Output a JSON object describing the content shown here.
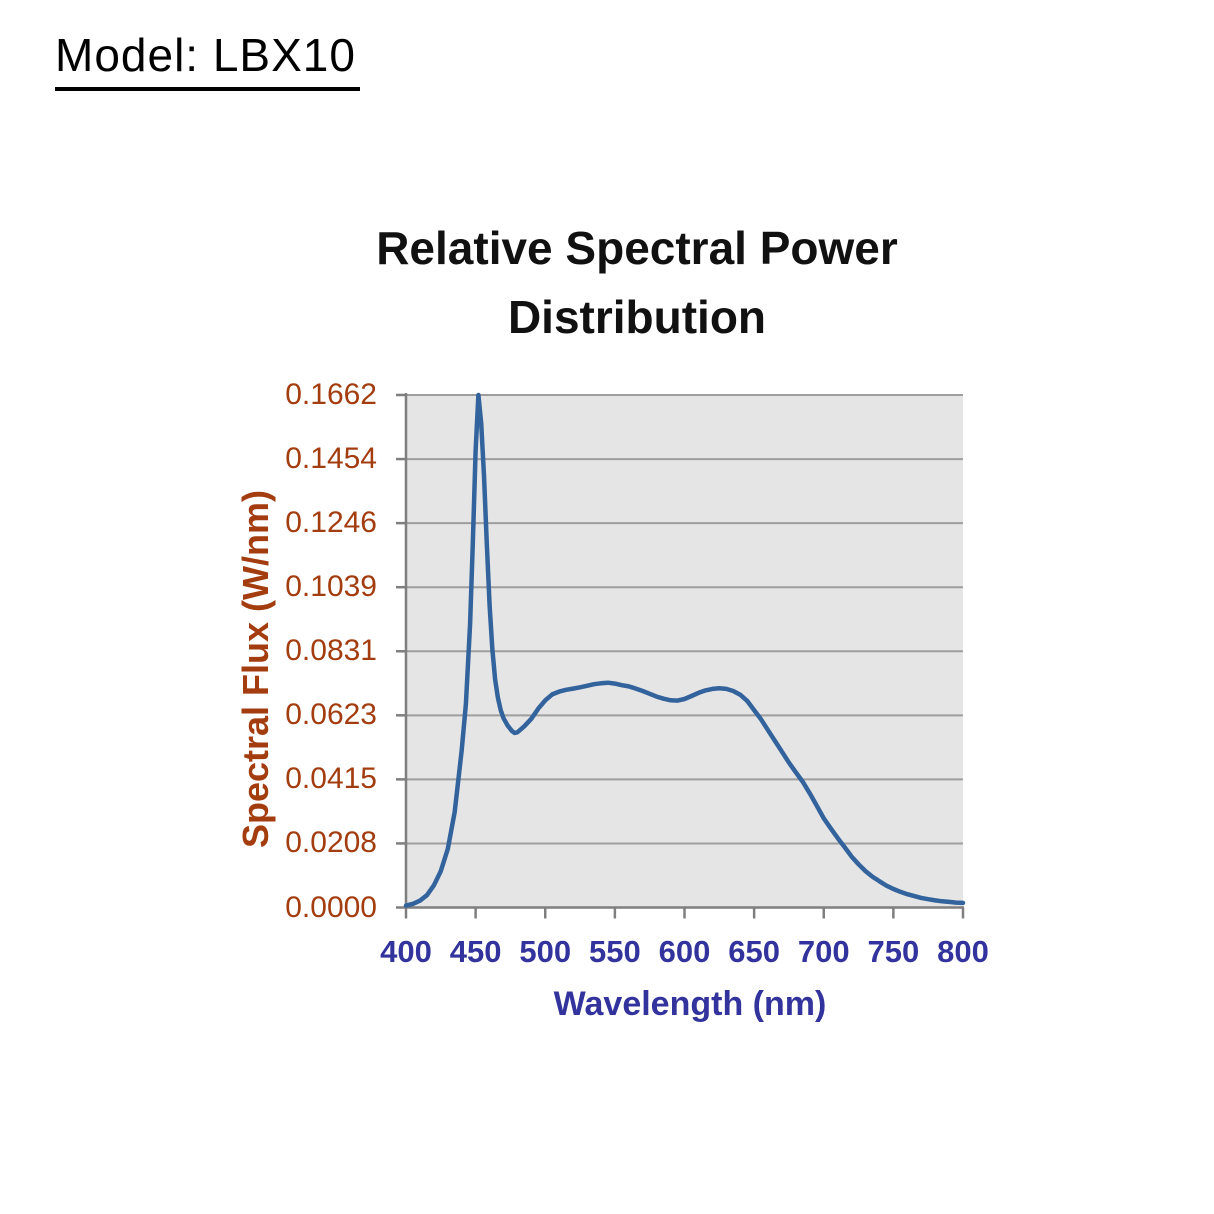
{
  "page": {
    "model_label": "Model: LBX10"
  },
  "chart_data": {
    "type": "line",
    "title": "Relative Spectral Power Distribution",
    "xlabel": "Wavelength (nm)",
    "ylabel": "Spectral Flux (W/nm)",
    "xlim": [
      400,
      800
    ],
    "ylim": [
      0,
      0.1662
    ],
    "x_ticks": [
      400,
      450,
      500,
      550,
      600,
      650,
      700,
      750,
      800
    ],
    "y_tick_labels": [
      "0.1662",
      "0.1454",
      "0.1246",
      "0.1039",
      "0.0831",
      "0.0623",
      "0.0415",
      "0.0208",
      "0.0000"
    ],
    "grid": "horizontal",
    "legend": "none",
    "colors": {
      "line": "#33639C",
      "plot_background": "#E5E5E5",
      "gridline": "#9E9E9E",
      "axis": "#7F7F7F",
      "y_text": "#A33D0F",
      "x_text": "#33339E",
      "title_text": "#111111"
    },
    "series": [
      {
        "name": "spectral-flux",
        "points": [
          [
            400,
            0.0006
          ],
          [
            405,
            0.0012
          ],
          [
            410,
            0.0022
          ],
          [
            415,
            0.004
          ],
          [
            420,
            0.0072
          ],
          [
            425,
            0.0118
          ],
          [
            430,
            0.019
          ],
          [
            435,
            0.031
          ],
          [
            440,
            0.051
          ],
          [
            443,
            0.066
          ],
          [
            446,
            0.092
          ],
          [
            448,
            0.118
          ],
          [
            450,
            0.148
          ],
          [
            452,
            0.1662
          ],
          [
            454,
            0.157
          ],
          [
            456,
            0.14
          ],
          [
            458,
            0.118
          ],
          [
            460,
            0.098
          ],
          [
            462,
            0.084
          ],
          [
            464,
            0.074
          ],
          [
            466,
            0.068
          ],
          [
            468,
            0.064
          ],
          [
            470,
            0.0614
          ],
          [
            473,
            0.059
          ],
          [
            476,
            0.0573
          ],
          [
            478,
            0.0566
          ],
          [
            480,
            0.0568
          ],
          [
            485,
            0.0588
          ],
          [
            490,
            0.0612
          ],
          [
            495,
            0.0645
          ],
          [
            500,
            0.0672
          ],
          [
            505,
            0.0691
          ],
          [
            510,
            0.07
          ],
          [
            515,
            0.0706
          ],
          [
            520,
            0.071
          ],
          [
            525,
            0.0714
          ],
          [
            530,
            0.0719
          ],
          [
            535,
            0.0724
          ],
          [
            540,
            0.0727
          ],
          [
            545,
            0.0729
          ],
          [
            550,
            0.0726
          ],
          [
            555,
            0.0721
          ],
          [
            560,
            0.0717
          ],
          [
            565,
            0.071
          ],
          [
            570,
            0.0702
          ],
          [
            575,
            0.0693
          ],
          [
            580,
            0.0684
          ],
          [
            585,
            0.0677
          ],
          [
            590,
            0.0672
          ],
          [
            595,
            0.0671
          ],
          [
            600,
            0.0676
          ],
          [
            605,
            0.0686
          ],
          [
            610,
            0.0696
          ],
          [
            615,
            0.0704
          ],
          [
            620,
            0.0709
          ],
          [
            625,
            0.0711
          ],
          [
            630,
            0.0709
          ],
          [
            635,
            0.0702
          ],
          [
            640,
            0.069
          ],
          [
            645,
            0.067
          ],
          [
            650,
            0.064
          ],
          [
            655,
            0.061
          ],
          [
            660,
            0.0575
          ],
          [
            665,
            0.054
          ],
          [
            670,
            0.0505
          ],
          [
            675,
            0.047
          ],
          [
            680,
            0.0438
          ],
          [
            685,
            0.0407
          ],
          [
            690,
            0.037
          ],
          [
            695,
            0.033
          ],
          [
            700,
            0.0289
          ],
          [
            705,
            0.0257
          ],
          [
            710,
            0.0225
          ],
          [
            715,
            0.0196
          ],
          [
            720,
            0.0165
          ],
          [
            725,
            0.014
          ],
          [
            730,
            0.0118
          ],
          [
            735,
            0.01
          ],
          [
            740,
            0.0085
          ],
          [
            745,
            0.0071
          ],
          [
            750,
            0.006
          ],
          [
            755,
            0.0051
          ],
          [
            760,
            0.0043
          ],
          [
            765,
            0.0037
          ],
          [
            770,
            0.0031
          ],
          [
            775,
            0.0027
          ],
          [
            780,
            0.0023
          ],
          [
            785,
            0.002
          ],
          [
            790,
            0.0018
          ],
          [
            795,
            0.0016
          ],
          [
            800,
            0.0015
          ]
        ]
      }
    ]
  }
}
